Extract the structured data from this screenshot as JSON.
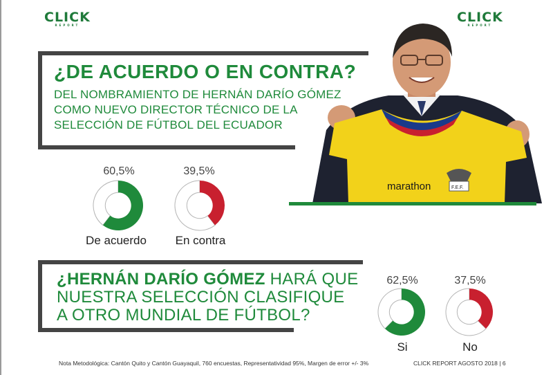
{
  "logos": {
    "left_word": "CLICK",
    "left_sub": "REPORT",
    "right_word": "CLICK",
    "right_sub": "REPORT"
  },
  "question1": {
    "title": "¿DE ACUERDO O EN CONTRA?",
    "subtitle_lines": [
      "DEL NOMBRAMIENTO DE HERNÁN DARÍO GÓMEZ",
      "COMO NUEVO DIRECTOR TÉCNICO DE LA",
      "SELECCIÓN DE FÚTBOL DEL ECUADOR"
    ]
  },
  "question2": {
    "line1_bold": "¿HERNÁN DARÍO GÓMEZ",
    "line1_rest": " HARÁ QUE",
    "line2": "NUESTRA SELECCIÓN CLASIFIQUE",
    "line3": "A OTRO MUNDIAL DE FÚTBOL?"
  },
  "photo": {
    "shirt_brand": "marathon",
    "crest_text": "F.E.F."
  },
  "chart_data": [
    {
      "type": "pie",
      "question": "¿DE ACUERDO O EN CONTRA?",
      "categories": [
        "De acuerdo",
        "En contra"
      ],
      "values": [
        60.5,
        39.5
      ],
      "value_labels": [
        "60,5%",
        "39,5%"
      ],
      "colors": [
        "#1f8a3b",
        "#c8202f"
      ]
    },
    {
      "type": "pie",
      "question": "¿HERNÁN DARÍO GÓMEZ HARÁ QUE NUESTRA SELECCIÓN CLASIFIQUE A OTRO MUNDIAL DE FÚTBOL?",
      "categories": [
        "Si",
        "No"
      ],
      "values": [
        62.5,
        37.5
      ],
      "value_labels": [
        "62,5%",
        "37,5%"
      ],
      "colors": [
        "#1f8a3b",
        "#c8202f"
      ]
    }
  ],
  "footer": {
    "note": "Nota Metodológica: Cantón Quito y Cantón Guayaquil, 760 encuestas, Representatividad 95%, Margen de error +/- 3%",
    "right": "CLICK REPORT  AGOSTO 2018 |  6"
  },
  "colors": {
    "green": "#1f8a3b",
    "red": "#c8202f",
    "frame": "#444444"
  }
}
